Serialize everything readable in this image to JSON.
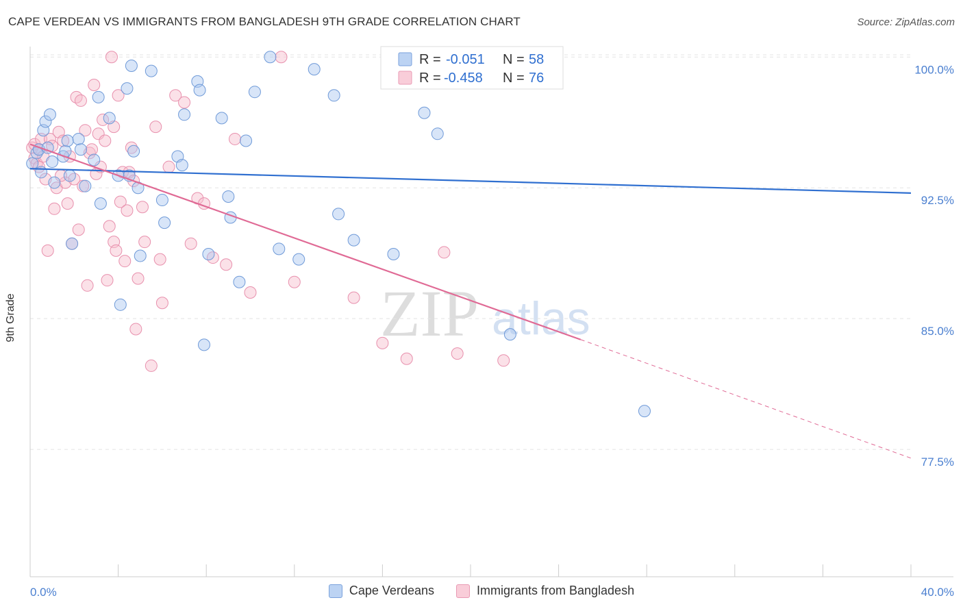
{
  "header": {
    "title": "CAPE VERDEAN VS IMMIGRANTS FROM BANGLADESH 9TH GRADE CORRELATION CHART",
    "source": "Source: ZipAtlas.com"
  },
  "watermark": {
    "zip": "ZIP",
    "atlas": "atlas"
  },
  "colors": {
    "blue_fill": "#a9c6ef",
    "blue_stroke": "#6f9ad8",
    "blue_line": "#2f6fd0",
    "pink_fill": "#f6bccd",
    "pink_stroke": "#e890ad",
    "pink_line": "#e06a95",
    "tick_blue": "#4a7fd0"
  },
  "legend": {
    "series": [
      {
        "r_label": "R =",
        "r_value": "-0.051",
        "n_label": "N =",
        "n_value": "58"
      },
      {
        "r_label": "R =",
        "r_value": "-0.458",
        "n_label": "N =",
        "n_value": "76"
      }
    ]
  },
  "bottom_legend": {
    "items": [
      {
        "label": "Cape Verdeans"
      },
      {
        "label": "Immigrants from Bangladesh"
      }
    ]
  },
  "chart_data": {
    "type": "scatter",
    "title": "CAPE VERDEAN VS IMMIGRANTS FROM BANGLADESH 9TH GRADE CORRELATION CHART",
    "xlabel": "",
    "ylabel": "9th Grade",
    "xlim": [
      0,
      40
    ],
    "ylim": [
      70.2,
      100.6
    ],
    "x_tick_labels": [
      "0.0%",
      "40.0%"
    ],
    "y_ticks": [
      100.0,
      92.5,
      85.0,
      77.5
    ],
    "y_tick_labels": [
      "100.0%",
      "92.5%",
      "85.0%",
      "77.5%"
    ],
    "grid": true,
    "series": [
      {
        "name": "Cape Verdeans",
        "color": "#a9c6ef",
        "x": [
          0.1,
          0.3,
          0.4,
          0.6,
          0.7,
          0.8,
          0.9,
          1.0,
          1.1,
          1.5,
          1.6,
          1.7,
          1.9,
          2.2,
          2.3,
          2.5,
          3.2,
          3.1,
          3.6,
          4.0,
          4.1,
          4.6,
          4.4,
          4.5,
          4.9,
          5.0,
          5.5,
          6.0,
          6.1,
          6.7,
          7.0,
          7.6,
          7.7,
          7.9,
          8.1,
          8.7,
          9.0,
          9.1,
          9.5,
          9.8,
          10.2,
          10.9,
          11.3,
          12.2,
          12.9,
          13.8,
          14.0,
          14.7,
          16.5,
          17.9,
          18.5,
          21.8,
          27.9,
          0.5,
          1.8,
          4.7,
          6.9,
          2.9
        ],
        "y": [
          93.9,
          94.5,
          94.7,
          95.8,
          96.3,
          94.8,
          96.7,
          94.0,
          92.8,
          94.3,
          94.6,
          95.2,
          89.3,
          95.3,
          94.7,
          92.6,
          91.6,
          97.7,
          96.5,
          93.2,
          85.8,
          99.5,
          98.2,
          93.2,
          92.5,
          88.6,
          99.2,
          91.8,
          90.5,
          94.3,
          96.7,
          98.6,
          98.1,
          83.5,
          88.7,
          96.5,
          92.0,
          90.8,
          87.1,
          95.2,
          98.0,
          100.0,
          89.0,
          88.4,
          99.3,
          97.8,
          91.0,
          89.5,
          88.7,
          96.8,
          95.6,
          84.1,
          79.7,
          93.4,
          93.2,
          94.6,
          93.8,
          94.1
        ]
      },
      {
        "name": "Immigrants from Bangladesh",
        "color": "#f6bccd",
        "x": [
          0.1,
          0.2,
          0.2,
          0.3,
          0.4,
          0.4,
          0.5,
          0.6,
          0.7,
          0.8,
          0.9,
          1.0,
          1.1,
          1.2,
          1.3,
          1.5,
          1.6,
          1.7,
          1.8,
          1.9,
          2.0,
          2.1,
          2.2,
          2.3,
          2.4,
          2.5,
          2.6,
          2.7,
          2.8,
          2.9,
          3.0,
          3.1,
          3.2,
          3.3,
          3.4,
          3.5,
          3.6,
          3.7,
          3.8,
          3.9,
          4.0,
          4.1,
          4.2,
          4.3,
          4.4,
          4.5,
          4.6,
          4.7,
          4.8,
          4.9,
          5.1,
          5.2,
          5.5,
          5.7,
          5.9,
          6.0,
          6.3,
          6.6,
          7.0,
          7.3,
          7.6,
          7.9,
          8.3,
          8.9,
          9.3,
          10.0,
          11.4,
          12.0,
          14.7,
          16.0,
          17.1,
          18.8,
          19.4,
          21.5,
          1.4,
          3.8
        ],
        "y": [
          94.8,
          94.2,
          95.0,
          93.9,
          94.7,
          93.7,
          95.3,
          94.3,
          93.0,
          88.9,
          95.3,
          94.9,
          91.3,
          92.5,
          95.7,
          95.2,
          92.8,
          91.6,
          94.3,
          89.3,
          93.0,
          97.7,
          90.1,
          97.5,
          92.6,
          95.8,
          86.9,
          94.5,
          94.7,
          98.4,
          93.3,
          95.6,
          93.7,
          96.4,
          95.2,
          87.2,
          90.3,
          100.0,
          89.4,
          88.9,
          97.8,
          91.7,
          93.4,
          88.3,
          91.2,
          93.4,
          94.8,
          92.9,
          84.4,
          87.3,
          91.4,
          89.4,
          82.3,
          96.0,
          88.4,
          85.9,
          93.7,
          97.8,
          97.4,
          89.3,
          91.9,
          91.6,
          88.5,
          88.1,
          95.3,
          86.5,
          100.0,
          87.1,
          86.2,
          83.6,
          82.7,
          88.8,
          83.0,
          82.6,
          93.2,
          96.0
        ]
      }
    ],
    "trend_lines": [
      {
        "series": "Cape Verdeans",
        "x0": 0,
        "y0": 93.6,
        "x1": 40,
        "y1": 92.2,
        "dashed_extension": false
      },
      {
        "series": "Immigrants from Bangladesh",
        "x0": 0,
        "y0": 95.0,
        "x1": 25,
        "y1": 83.8,
        "dash_x1": 40,
        "dash_y1": 77.0
      }
    ]
  }
}
